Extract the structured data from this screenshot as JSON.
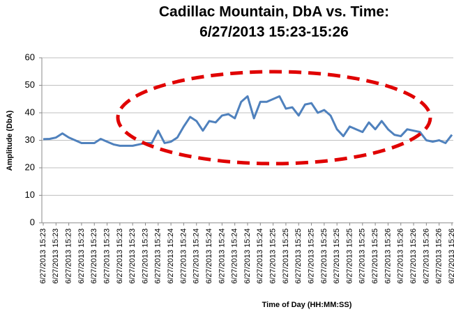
{
  "chart_data": {
    "type": "line",
    "title": [
      "Cadillac Mountain, DbA vs. Time:",
      "6/27/2013 15:23-15:26"
    ],
    "x_label": "Time of Day (HH:MM:SS)",
    "y_label": "Amplitude (DbA)",
    "categories": [
      "6/27/2013 15:23",
      null,
      "6/27/2013 15:23",
      null,
      "6/27/2013 15:23",
      null,
      "6/27/2013 15:23",
      null,
      "6/27/2013 15:23",
      null,
      "6/27/2013 15:23",
      null,
      "6/27/2013 15:23",
      null,
      "6/27/2013 15:23",
      null,
      "6/27/2013 15:23",
      null,
      "6/27/2013 15:24",
      null,
      "6/27/2013 15:24",
      null,
      "6/27/2013 15:24",
      null,
      "6/27/2013 15:24",
      null,
      "6/27/2013 15:24",
      null,
      "6/27/2013 15:24",
      null,
      "6/27/2013 15:24",
      null,
      "6/27/2013 15:24",
      null,
      "6/27/2013 15:24",
      null,
      "6/27/2013 15:25",
      null,
      "6/27/2013 15:25",
      null,
      "6/27/2013 15:25",
      null,
      "6/27/2013 15:25",
      null,
      "6/27/2013 15:25",
      null,
      "6/27/2013 15:25",
      null,
      "6/27/2013 15:25",
      null,
      "6/27/2013 15:25",
      null,
      "6/27/2013 15:25",
      null,
      "6/27/2013 15:26",
      null,
      "6/27/2013 15:26",
      null,
      "6/27/2013 15:26",
      null,
      "6/27/2013 15:26",
      null,
      "6/27/2013 15:26",
      null,
      "6/27/2013 15:26"
    ],
    "series": [
      {
        "name": "DbA",
        "color": "#4f81bd",
        "values": [
          30.4,
          30.5,
          31,
          32.5,
          31,
          30,
          29,
          29,
          29,
          30.5,
          29.5,
          28.5,
          28,
          28,
          28,
          28.5,
          29,
          29,
          33.5,
          29,
          29.5,
          31,
          35,
          38.5,
          37,
          33.5,
          37,
          36.5,
          39,
          39.5,
          38,
          44,
          46,
          38,
          44,
          44,
          45,
          46,
          41.5,
          42,
          39,
          43,
          43.5,
          40,
          41,
          39,
          34,
          31.5,
          35,
          34,
          33,
          36.5,
          34,
          37,
          34,
          32,
          31.5,
          34,
          33.5,
          33,
          30,
          29.5,
          30,
          29,
          32
        ]
      }
    ],
    "ylim": [
      0,
      60
    ],
    "yticks": [
      0,
      10,
      20,
      30,
      40,
      50,
      60
    ],
    "grid": true
  }
}
